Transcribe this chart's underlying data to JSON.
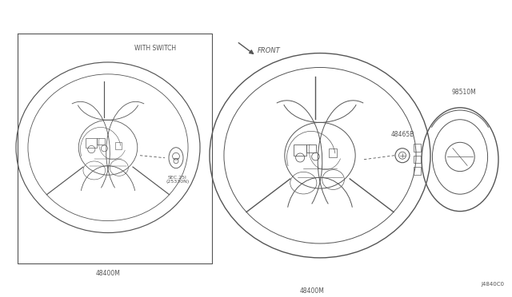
{
  "bg_color": "#ffffff",
  "lc": "#555555",
  "fig_width": 6.4,
  "fig_height": 3.72,
  "diagram_code": "J4840C0",
  "front_label": "FRONT",
  "with_switch_label": "WITH SWITCH",
  "label_48400M_left": "48400M",
  "label_48400M_right": "48400M",
  "label_48465B": "48465B",
  "label_98510M": "98510M",
  "label_sec": "SEC.25I\n(25330N)"
}
